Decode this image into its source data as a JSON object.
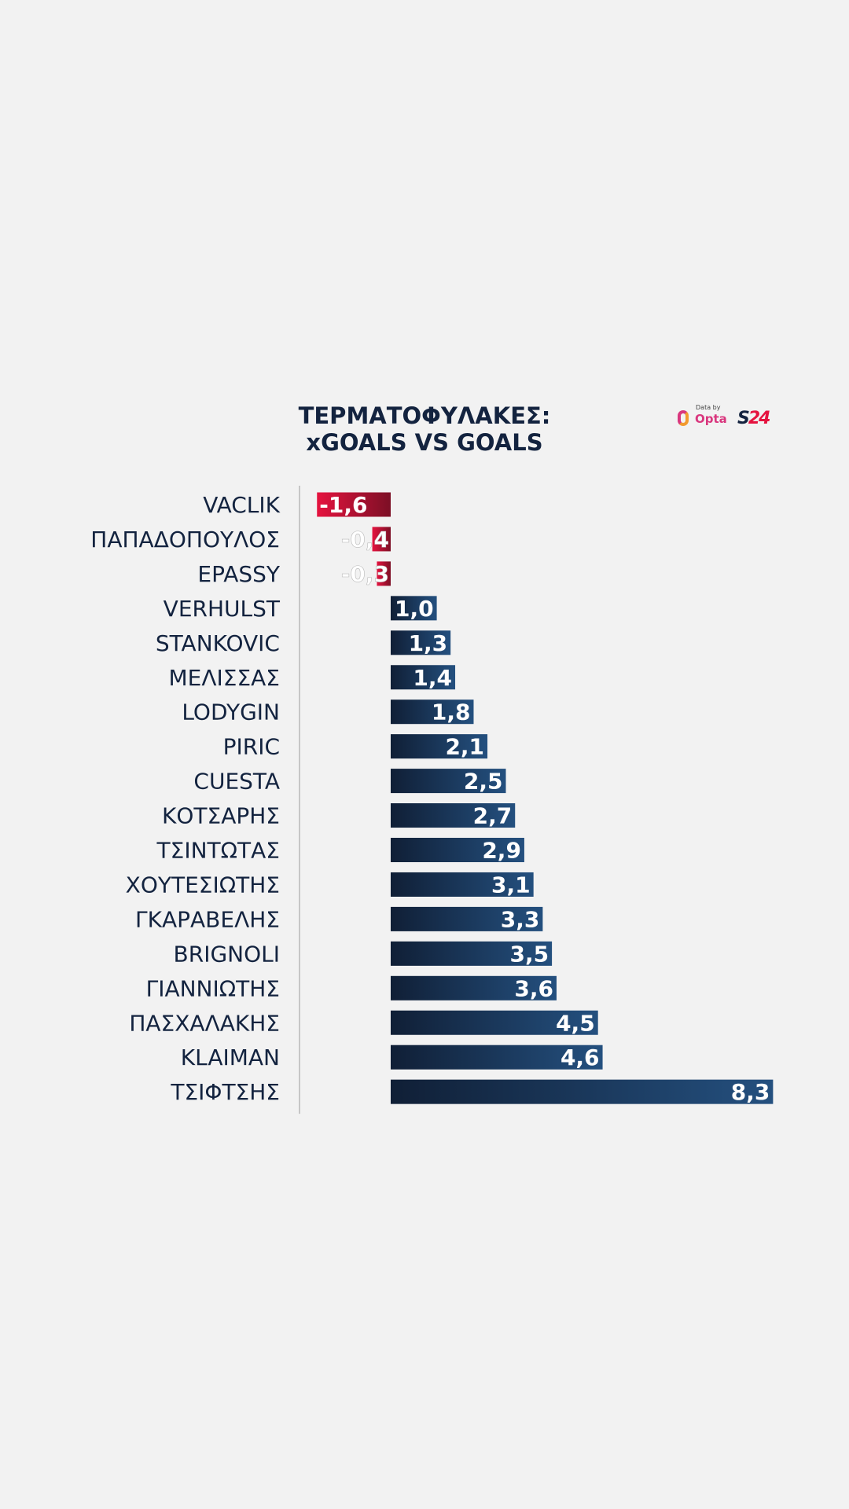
{
  "title": {
    "line1": "ΤΕΡΜΑΤΟΦΥΛΑΚΕΣ:",
    "line2": "xGOALS VS GOALS"
  },
  "logos": {
    "data_by": "Data by",
    "opta": "Opta",
    "brand_s": "S",
    "brand_24": "24"
  },
  "colors": {
    "background": "#f2f2f2",
    "text": "#13233f",
    "positive_bar_start": "#101f36",
    "positive_bar_end": "#24507f",
    "negative_bar_start": "#e5133f",
    "negative_bar_end": "#7c0f25"
  },
  "chart_data": {
    "type": "bar",
    "orientation": "horizontal",
    "categories": [
      "VACLIK",
      "ΠΑΠΑΔΟΠΟΥΛΟΣ",
      "EPASSY",
      "VERHULST",
      "STANKOVIC",
      "ΜΕΛΙΣΣΑΣ",
      "LODYGIN",
      "PIRIC",
      "CUESTA",
      "ΚΟΤΣΑΡΗΣ",
      "ΤΣΙΝΤΩΤΑΣ",
      "ΧΟΥΤΕΣΙΩΤΗΣ",
      "ΓΚΑΡΑΒΕΛΗΣ",
      "BRIGNOLI",
      "ΓΙΑΝΝΙΩΤΗΣ",
      "ΠΑΣΧΑΛΑΚΗΣ",
      "KLAIMAN",
      "ΤΣΙΦΤΣΗΣ"
    ],
    "values": [
      -1.6,
      -0.4,
      -0.3,
      1.0,
      1.3,
      1.4,
      1.8,
      2.1,
      2.5,
      2.7,
      2.9,
      3.1,
      3.3,
      3.5,
      3.6,
      4.5,
      4.6,
      8.3
    ],
    "value_labels": [
      "-1,6",
      "-0,4",
      "-0,3",
      "1,0",
      "1,3",
      "1,4",
      "1,8",
      "2,1",
      "2,5",
      "2,7",
      "2,9",
      "3,1",
      "3,3",
      "3,5",
      "3,6",
      "4,5",
      "4,6",
      "8,3"
    ],
    "xlim": [
      -2.0,
      8.3
    ],
    "grid": false,
    "legend": "none"
  }
}
